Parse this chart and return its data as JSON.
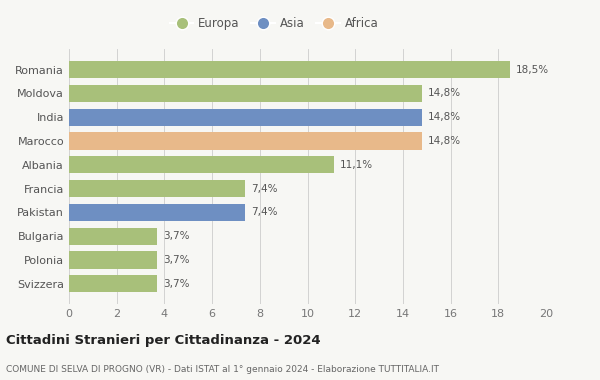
{
  "categories": [
    "Romania",
    "Moldova",
    "India",
    "Marocco",
    "Albania",
    "Francia",
    "Pakistan",
    "Bulgaria",
    "Polonia",
    "Svizzera"
  ],
  "values": [
    18.5,
    14.8,
    14.8,
    14.8,
    11.1,
    7.4,
    7.4,
    3.7,
    3.7,
    3.7
  ],
  "labels": [
    "18,5%",
    "14,8%",
    "14,8%",
    "14,8%",
    "11,1%",
    "7,4%",
    "7,4%",
    "3,7%",
    "3,7%",
    "3,7%"
  ],
  "continents": [
    "Europa",
    "Europa",
    "Asia",
    "Africa",
    "Europa",
    "Europa",
    "Asia",
    "Europa",
    "Europa",
    "Europa"
  ],
  "colors": {
    "Europa": "#a8c07a",
    "Asia": "#6e8fc2",
    "Africa": "#e8b98a"
  },
  "legend_labels": [
    "Europa",
    "Asia",
    "Africa"
  ],
  "xlim": [
    0,
    20
  ],
  "xticks": [
    0,
    2,
    4,
    6,
    8,
    10,
    12,
    14,
    16,
    18,
    20
  ],
  "title": "Cittadini Stranieri per Cittadinanza - 2024",
  "subtitle": "COMUNE DI SELVA DI PROGNO (VR) - Dati ISTAT al 1° gennaio 2024 - Elaborazione TUTTITALIA.IT",
  "bg_color": "#f7f7f4"
}
